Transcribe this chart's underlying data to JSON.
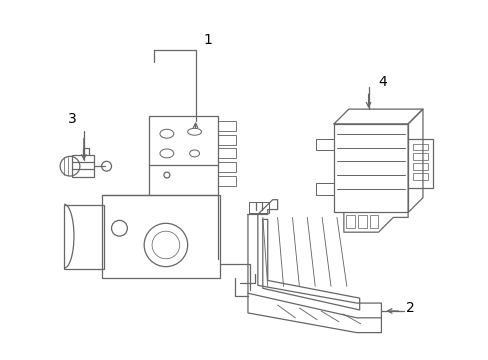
{
  "background_color": "#ffffff",
  "line_color": "#666666",
  "label_color": "#000000",
  "figsize": [
    4.89,
    3.6
  ],
  "dpi": 100
}
